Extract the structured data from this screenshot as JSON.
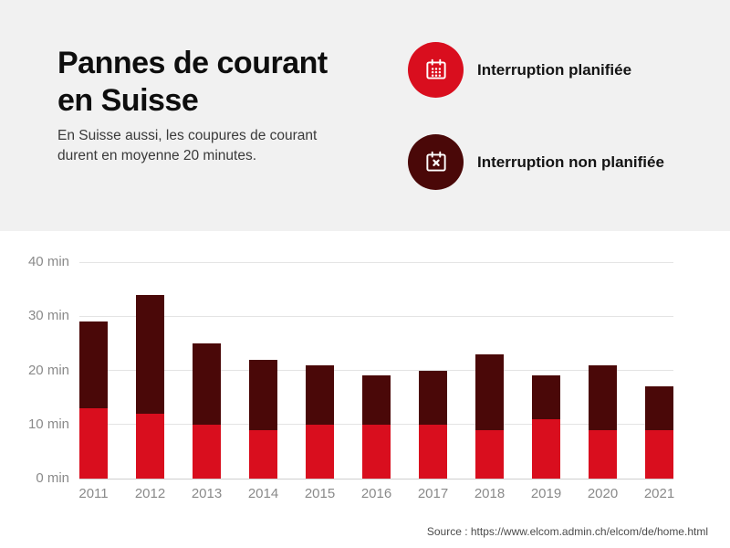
{
  "header": {
    "title_line1": "Pannes de courant",
    "title_line2": "en Suisse",
    "subtitle": "En Suisse aussi, les coupures de courant durent en moyenne 20 minutes."
  },
  "legend": [
    {
      "label": "Interruption planifiée",
      "icon": "calendar-icon",
      "color": "#d90e1e"
    },
    {
      "label": "Interruption non planifiée",
      "icon": "calendar-x-icon",
      "color": "#4a0808"
    }
  ],
  "chart_data": {
    "type": "bar",
    "stacked": true,
    "title": "Pannes de courant en Suisse",
    "categories": [
      "2011",
      "2012",
      "2013",
      "2014",
      "2015",
      "2016",
      "2017",
      "2018",
      "2019",
      "2020",
      "2021"
    ],
    "series": [
      {
        "name": "Interruption planifiée",
        "color": "#d90e1e",
        "values": [
          13,
          12,
          10,
          9,
          10,
          10,
          10,
          9,
          11,
          9,
          9
        ]
      },
      {
        "name": "Interruption non planifiée",
        "color": "#4a0808",
        "values": [
          16,
          22,
          15,
          13,
          11,
          9,
          10,
          14,
          8,
          12,
          8
        ]
      }
    ],
    "totals": [
      29,
      34,
      25,
      22,
      21,
      19,
      20,
      23,
      19,
      21,
      17
    ],
    "unit": "min",
    "yticks": [
      "0 min",
      "10 min",
      "20 min",
      "30 min",
      "40 min"
    ],
    "ylim": [
      0,
      40
    ],
    "grid": true,
    "legend_position": "top-right"
  },
  "footer": {
    "source": "Source : https://www.elcom.admin.ch/elcom/de/home.html"
  },
  "colors": {
    "planned_red": "#d90e1e",
    "unplanned_maroon": "#4a0808",
    "panel_gray": "#f1f1f1",
    "axis_label_gray": "#8a8a8a",
    "gridline_gray": "#e4e4e4"
  }
}
